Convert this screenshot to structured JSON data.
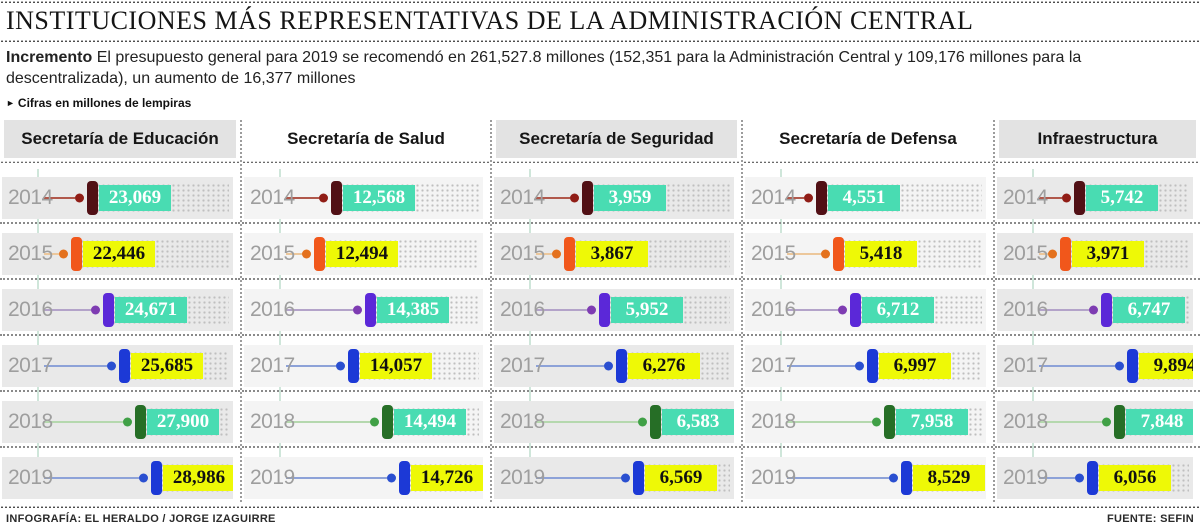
{
  "title": "INSTITUCIONES MÁS REPRESENTATIVAS DE LA ADMINISTRACIÓN CENTRAL",
  "intro": {
    "lead": "Incremento",
    "text": " El presupuesto general para 2019 se recomendó en 261,527.8 millones (152,351 para la Administración Central y 109,176 millones para la descentralizada), un aumento de 16,377 millones"
  },
  "note": "Cifras en millones de lempiras",
  "icons": {
    "note_bullet": "►"
  },
  "footer": {
    "credit": "INFOGRAFÍA: EL HERALDO / JORGE IZAGUIRRE",
    "source": "FUENTE: SEFIN"
  },
  "year_styles": [
    {
      "year": "2014",
      "line": "#b0584b",
      "dot": "#901d16",
      "cap": "#511015",
      "box_bg": "#49dcb2",
      "box_text": "#ffffff"
    },
    {
      "year": "2015",
      "line": "#ecc79b",
      "dot": "#e4711d",
      "cap": "#f1571b",
      "box_bg": "#eef906",
      "box_text": "#111111"
    },
    {
      "year": "2016",
      "line": "#b3a3c9",
      "dot": "#7e3cb2",
      "cap": "#5b28d8",
      "box_bg": "#49dcb2",
      "box_text": "#ffffff"
    },
    {
      "year": "2017",
      "line": "#8da2d8",
      "dot": "#2a4fd0",
      "cap": "#1c39d6",
      "box_bg": "#eef906",
      "box_text": "#111111"
    },
    {
      "year": "2018",
      "line": "#b5d8ae",
      "dot": "#40a046",
      "cap": "#266e26",
      "box_bg": "#49dcb2",
      "box_text": "#ffffff"
    },
    {
      "year": "2019",
      "line": "#8da2d8",
      "dot": "#2a4fd0",
      "cap": "#1c39d6",
      "box_bg": "#eef906",
      "box_text": "#111111"
    }
  ],
  "chart_data": {
    "type": "bar",
    "orientation": "horizontal",
    "title": "Instituciones más representativas de la Administración Central",
    "unit": "millones de lempiras",
    "categories": [
      "2014",
      "2015",
      "2016",
      "2017",
      "2018",
      "2019"
    ],
    "series": [
      {
        "name": "Secretaría de Educación",
        "values": [
          23069,
          22446,
          24671,
          25685,
          27900,
          28986
        ]
      },
      {
        "name": "Secretaría de Salud",
        "values": [
          12568,
          12494,
          14385,
          14057,
          14494,
          14726
        ]
      },
      {
        "name": "Secretaría de Seguridad",
        "values": [
          3959,
          3867,
          5952,
          6276,
          6583,
          6569
        ]
      },
      {
        "name": "Secretaría de Defensa",
        "values": [
          4551,
          5418,
          6712,
          6997,
          7958,
          8529
        ]
      },
      {
        "name": "Infraestructura",
        "values": [
          5742,
          3971,
          6747,
          9894,
          7848,
          6056
        ]
      }
    ],
    "legend_position": "none",
    "grid": false
  }
}
